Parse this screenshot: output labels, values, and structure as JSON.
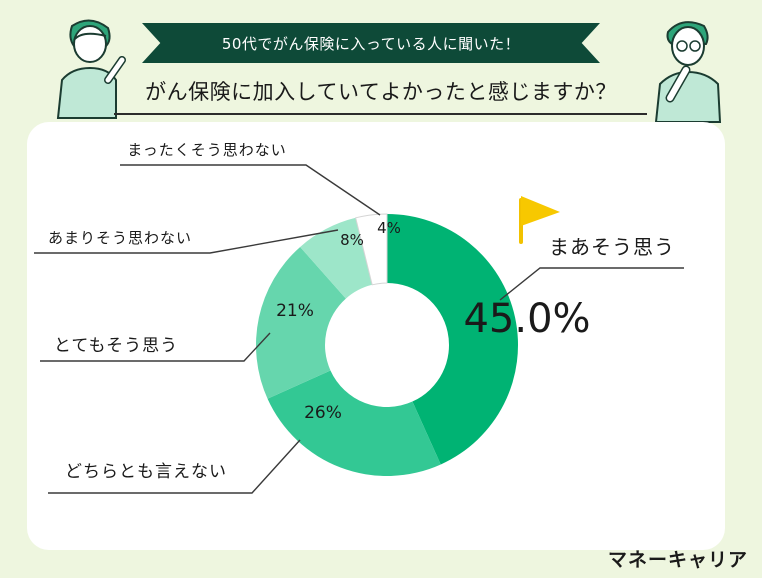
{
  "header": {
    "banner": "50代でがん保険に入っている人に聞いた！",
    "question": "がん保険に加入していてよかったと感じますか？"
  },
  "brand": "マネーキャリア",
  "chart_data": {
    "type": "pie",
    "donut": true,
    "title": "",
    "series": [
      {
        "label": "まあそう思う",
        "value": 45.0,
        "value_label": "45.0%",
        "color": "#00b373"
      },
      {
        "label": "どちらとも言えない",
        "value": 26,
        "value_label": "26%",
        "color": "#33c894"
      },
      {
        "label": "とてもそう思う",
        "value": 21,
        "value_label": "21%",
        "color": "#66d6ad"
      },
      {
        "label": "あまりそう思わない",
        "value": 8,
        "value_label": "8%",
        "color": "#9de6c9"
      },
      {
        "label": "まったくそう思わない",
        "value": 4,
        "value_label": "4%",
        "color": "#ffffff"
      }
    ],
    "highlight": "まあそう思う"
  }
}
